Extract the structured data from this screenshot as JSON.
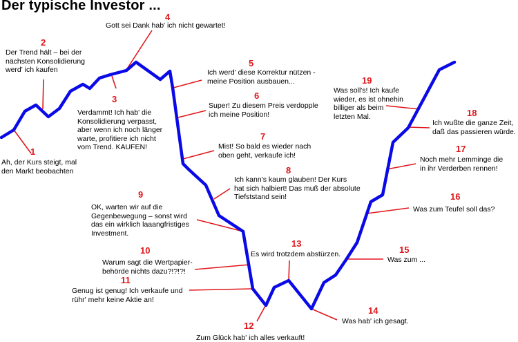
{
  "title": "Der typische Investor ...",
  "colors": {
    "line": "#0a0ae6",
    "callout": "#e0161b",
    "number": "#e0161b",
    "text": "#000000"
  },
  "annotations": [
    {
      "n": "1",
      "lines": [
        "Ah, der Kurs steigt, mal",
        "den Markt beobachten"
      ]
    },
    {
      "n": "2",
      "lines": [
        "Der Trend hält – bei der",
        "nächsten Konsolidierung",
        "werd' ich kaufen"
      ]
    },
    {
      "n": "3",
      "lines": [
        "Verdammt! Ich hab' die",
        "Konsolidierung verpasst,",
        "aber wenn ich noch länger",
        "warte, profitiere ich nicht",
        "vom Trend. KAUFEN!"
      ]
    },
    {
      "n": "4",
      "lines": [
        "Gott sei Dank hab' ich nicht gewartet!"
      ]
    },
    {
      "n": "5",
      "lines": [
        "Ich werd' diese Korrektur nützen -",
        "meine Position ausbauen..."
      ]
    },
    {
      "n": "6",
      "lines": [
        "Super! Zu diesem Preis verdopple",
        "ich meine Position!"
      ]
    },
    {
      "n": "7",
      "lines": [
        "Mist! So bald es wieder nach",
        "oben geht, verkaufe ich!"
      ]
    },
    {
      "n": "8",
      "lines": [
        "Ich kann's kaum glauben! Der Kurs",
        "hat sich halbiert! Das muß der absolute",
        "Tiefststand sein!"
      ]
    },
    {
      "n": "9",
      "lines": [
        "OK, warten wir auf die",
        "Gegenbewegung – sonst wird",
        "das ein wirklich laaangfristiges",
        "Investment."
      ]
    },
    {
      "n": "10",
      "lines": [
        "Warum sagt die Wertpapier-",
        "behörde nichts dazu?!?!?!"
      ]
    },
    {
      "n": "11",
      "lines": [
        "Genug ist genug! Ich verkaufe und",
        "rühr' mehr keine Aktie an!"
      ]
    },
    {
      "n": "12",
      "lines": [
        "Zum Glück hab' ich alles verkauft!"
      ]
    },
    {
      "n": "13",
      "lines": [
        "Es wird trotzdem abstürzen."
      ]
    },
    {
      "n": "14",
      "lines": [
        "Was hab' ich gesagt."
      ]
    },
    {
      "n": "15",
      "lines": [
        "Was zum ..."
      ]
    },
    {
      "n": "16",
      "lines": [
        "Was zum Teufel soll das?"
      ]
    },
    {
      "n": "17",
      "lines": [
        "Noch mehr Lemminge die",
        "in ihr Verderben rennen!"
      ]
    },
    {
      "n": "18",
      "lines": [
        "Ich wußte die ganze Zeit,",
        "daß das passieren würde."
      ]
    },
    {
      "n": "19",
      "lines": [
        "Was soll's! Ich kaufe",
        "wieder, es ist ohnehin",
        "billiger als beim",
        "letzten Mal."
      ]
    }
  ]
}
